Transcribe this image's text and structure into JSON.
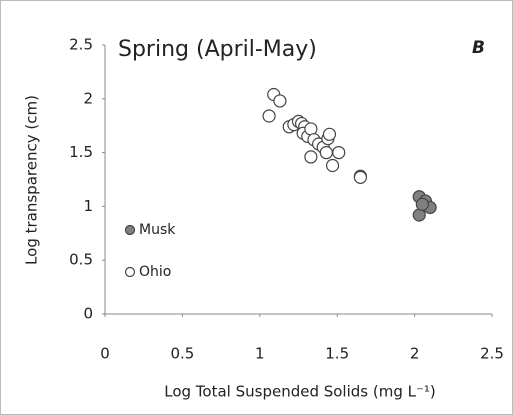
{
  "chart_data": {
    "type": "scatter",
    "title": "Spring (April-May)",
    "panel_label": "B",
    "x_label": "Log Total Suspended Solids (mg L⁻¹)",
    "y_label": "Log transparency (cm)",
    "xlim": [
      0,
      2.5
    ],
    "xticks": [
      0,
      0.5,
      1,
      1.5,
      2,
      2.5
    ],
    "ylim": [
      0,
      2.5
    ],
    "yticks": [
      0,
      0.5,
      1,
      1.5,
      2,
      2.5
    ],
    "grid": false,
    "series": [
      {
        "name": "Musk",
        "color": "#808080",
        "x": [
          2.03,
          2.03,
          2.07,
          2.1,
          2.05
        ],
        "values": [
          1.09,
          0.92,
          1.05,
          0.99,
          1.02
        ]
      },
      {
        "name": "Ohio",
        "color": "#ffffff",
        "x": [
          1.06,
          1.09,
          1.13,
          1.19,
          1.22,
          1.25,
          1.27,
          1.29,
          1.28,
          1.31,
          1.33,
          1.35,
          1.38,
          1.41,
          1.44,
          1.45,
          1.43,
          1.47,
          1.51,
          1.33,
          1.65,
          1.65
        ],
        "values": [
          1.84,
          2.04,
          1.98,
          1.74,
          1.76,
          1.79,
          1.77,
          1.74,
          1.68,
          1.65,
          1.72,
          1.62,
          1.58,
          1.55,
          1.63,
          1.67,
          1.5,
          1.38,
          1.5,
          1.46,
          1.28,
          1.27
        ]
      }
    ]
  }
}
